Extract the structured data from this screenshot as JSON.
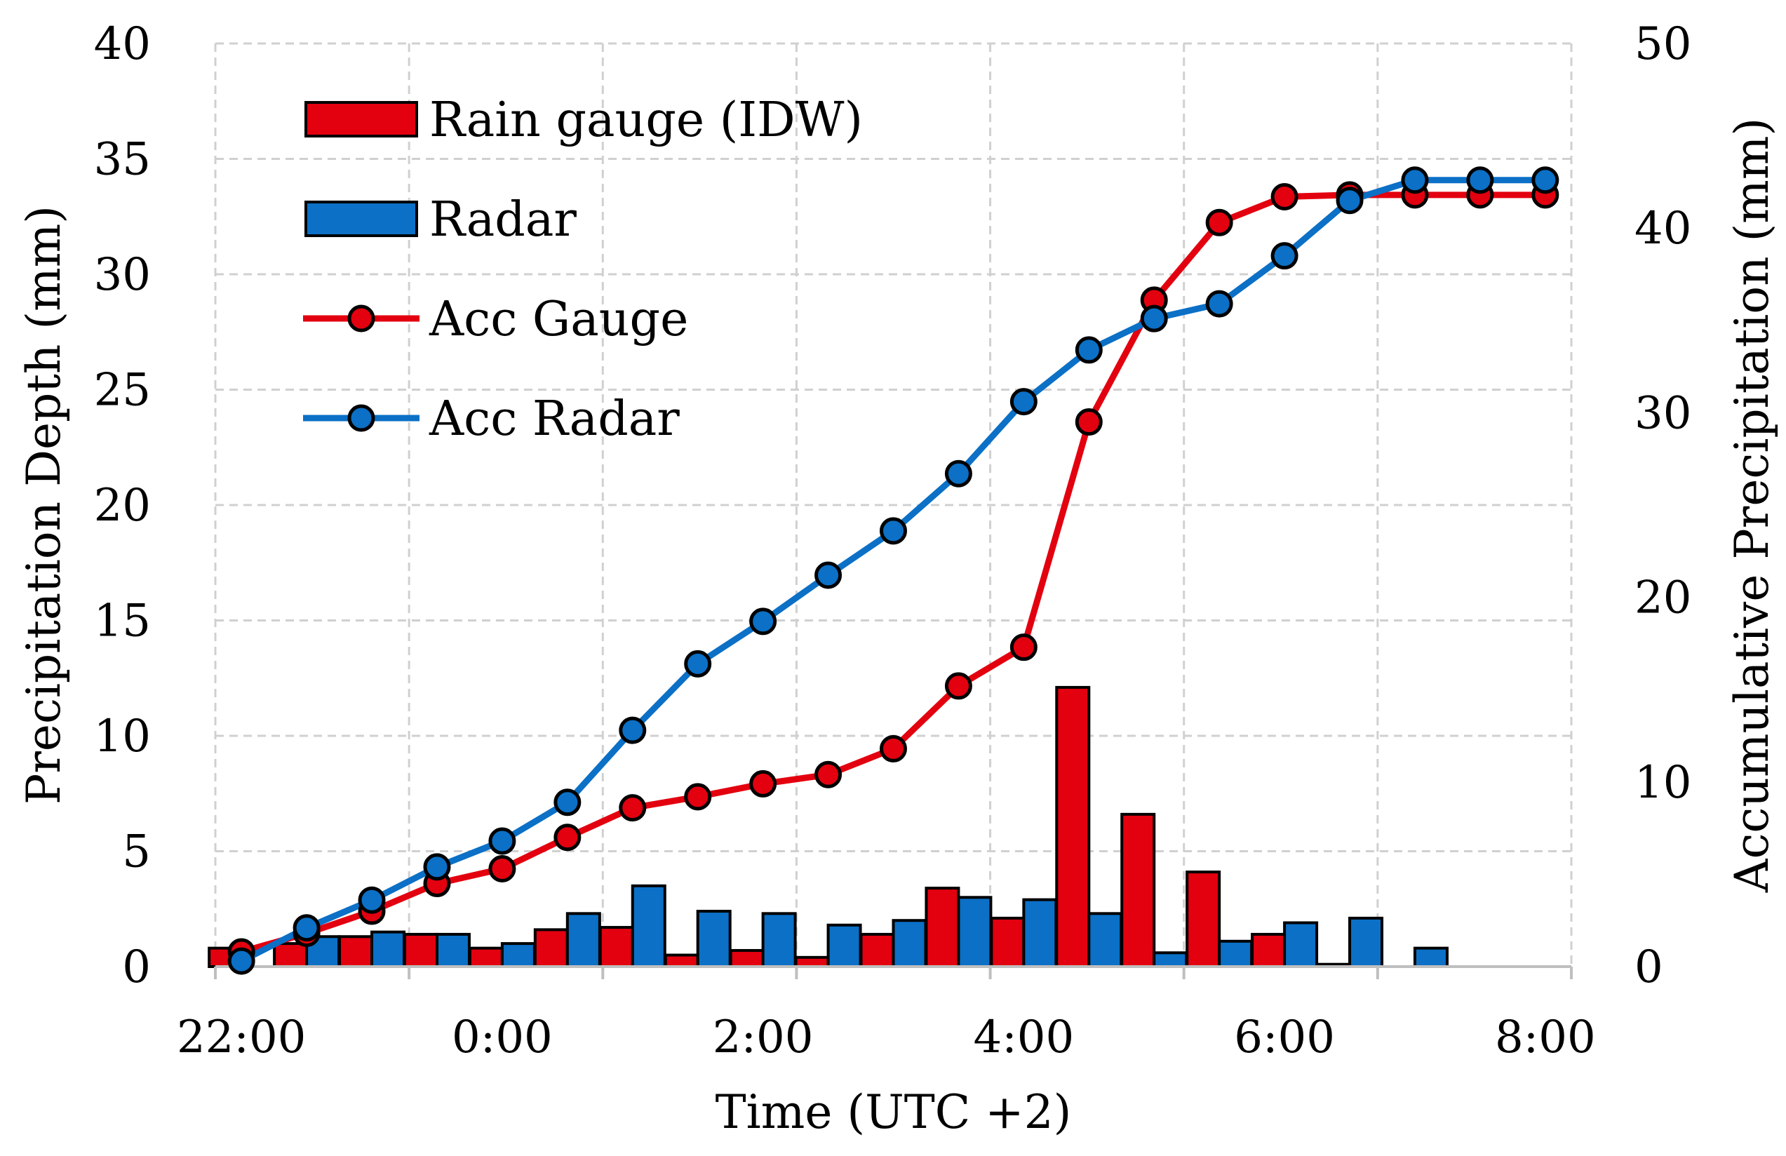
{
  "chart_data": {
    "type": "bar+line",
    "title": "",
    "xlabel": "Time (UTC +2)",
    "ylabel": "Precipitation Depth (mm)",
    "y2label": "Accumulative Precipitation (mm)",
    "ylim": [
      0,
      40
    ],
    "y2lim": [
      0,
      50
    ],
    "y_ticks": [
      "0",
      "5",
      "10",
      "15",
      "20",
      "25",
      "30",
      "35",
      "40"
    ],
    "y2_ticks": [
      "0",
      "10",
      "20",
      "30",
      "40",
      "50"
    ],
    "x_ticks": [
      "22:00",
      "0:00",
      "2:00",
      "4:00",
      "6:00",
      "8:00"
    ],
    "x_hours_from_2200": [
      0,
      2,
      4,
      6,
      8,
      10
    ],
    "xlim_hours": [
      -0.2,
      10.2
    ],
    "grid": true,
    "legend_position": "top-left",
    "time_hours": [
      0,
      0.5,
      1.0,
      1.5,
      2.0,
      2.5,
      3.0,
      3.5,
      4.0,
      4.5,
      5.0,
      5.5,
      6.0,
      6.5,
      7.0,
      7.5,
      8.0,
      8.5,
      9.0,
      9.5,
      10.0
    ],
    "series": [
      {
        "name": "Rain gauge (IDW)",
        "kind": "bar",
        "axis": "left",
        "color": "#e3000f",
        "values": [
          0.8,
          1.0,
          1.3,
          1.4,
          0.8,
          1.6,
          1.7,
          0.5,
          0.7,
          0.4,
          1.4,
          3.4,
          2.1,
          12.1,
          6.6,
          4.1,
          1.4,
          0.1,
          null,
          null,
          null
        ]
      },
      {
        "name": "Radar",
        "kind": "bar",
        "axis": "left",
        "color": "#0b70c6",
        "values": [
          null,
          1.3,
          1.5,
          1.4,
          1.0,
          2.3,
          3.5,
          2.4,
          2.3,
          1.8,
          2.0,
          3.0,
          2.9,
          2.3,
          0.6,
          1.1,
          1.9,
          2.1,
          0.8,
          null,
          null
        ]
      },
      {
        "name": "Acc Gauge",
        "kind": "line",
        "axis": "right",
        "color": "#e3000f",
        "values": [
          0.8,
          1.8,
          3.0,
          4.5,
          5.3,
          7.0,
          8.6,
          9.2,
          9.9,
          10.4,
          11.8,
          15.2,
          17.3,
          29.5,
          36.1,
          40.3,
          41.7,
          41.8,
          41.8,
          41.8,
          41.8
        ]
      },
      {
        "name": "Acc Radar",
        "kind": "line",
        "axis": "right",
        "color": "#0b70c6",
        "values": [
          0.3,
          2.1,
          3.6,
          5.4,
          6.8,
          8.9,
          12.8,
          16.4,
          18.7,
          21.2,
          23.6,
          26.7,
          30.6,
          33.4,
          35.1,
          35.9,
          38.5,
          41.5,
          42.6,
          42.6,
          42.6
        ]
      }
    ]
  }
}
